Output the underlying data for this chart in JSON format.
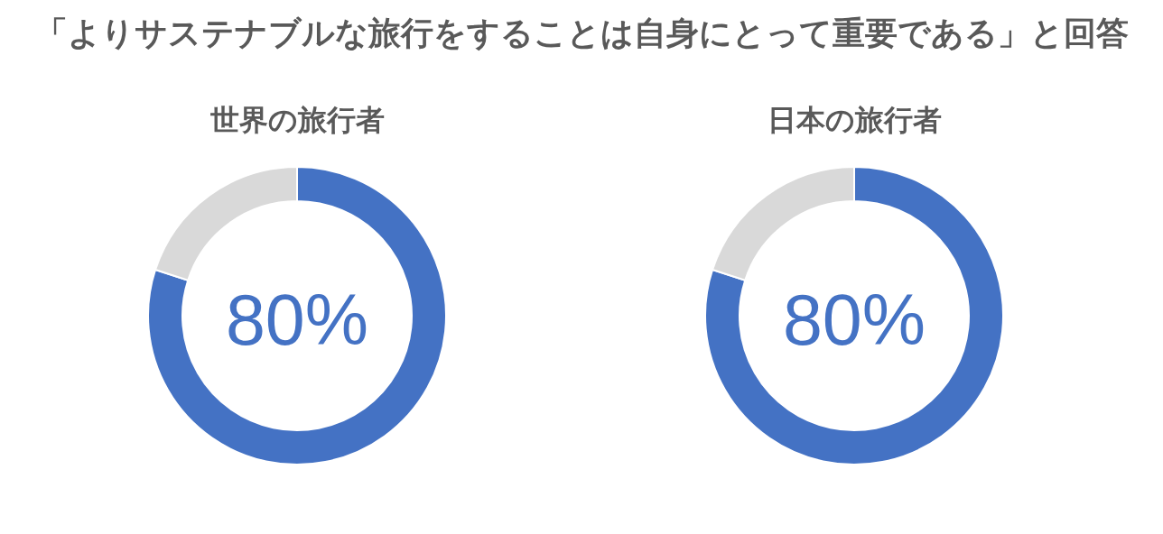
{
  "chart_data": [
    {
      "type": "donut",
      "title": "「よりサステナブルな旅行をすることは自身にとって重要である」と回答",
      "subtitle": "世界の旅行者",
      "annotations": [
        "80%"
      ],
      "categories": [
        null,
        null
      ],
      "values": [
        80,
        20
      ],
      "colors": [
        "#4472c4",
        "#d9d9d9"
      ]
    },
    {
      "type": "donut",
      "subtitle": "日本の旅行者",
      "annotations": [
        "80%"
      ],
      "categories": [
        null,
        null
      ],
      "values": [
        80,
        20
      ],
      "colors": [
        "#4472c4",
        "#d9d9d9"
      ]
    }
  ]
}
